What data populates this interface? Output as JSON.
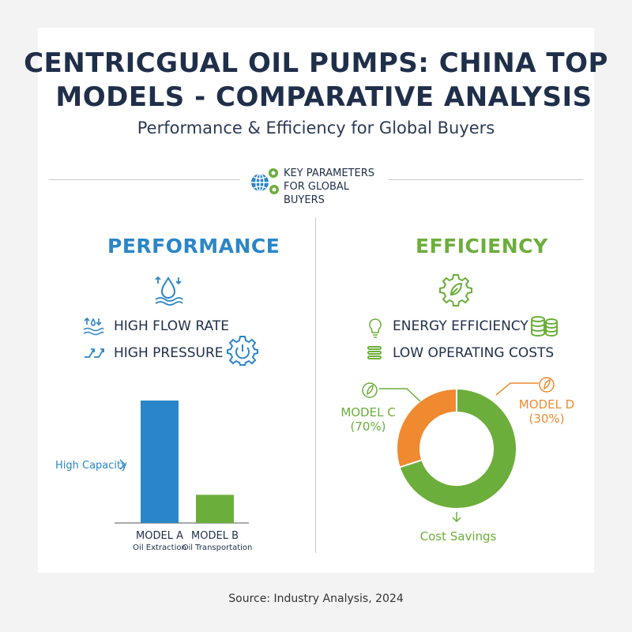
{
  "header": {
    "title_line1": "CENTRICGUAL OIL PUMPS: CHINA TOP",
    "title_line2": "MODELS - COMPARATIVE ANALYSIS",
    "subtitle": "Performance & Efficiency for Global Buyers"
  },
  "key_parameters": {
    "line1": "KEY PARAMETERS",
    "line2": "FOR GLOBAL BUYERS",
    "icon": "globe-gears-icon"
  },
  "performance": {
    "title": "PERFORMANCE",
    "color": "#2a86c8",
    "features": [
      {
        "label": "HIGH FLOW RATE",
        "icon": "water-flow-icon"
      },
      {
        "label": "HIGH PRESSURE",
        "icon": "pressure-arrows-icon"
      }
    ]
  },
  "efficiency": {
    "title": "EFFICIENCY",
    "color": "#6cae3b",
    "features": [
      {
        "label": "ENERGY EFFICIENCY",
        "icon": "lightbulb-icon"
      },
      {
        "label": "LOW OPERATING COSTS",
        "icon": "coins-icon"
      }
    ]
  },
  "chart_data": [
    {
      "type": "bar",
      "categories": [
        "MODEL A",
        "MODEL B"
      ],
      "category_sublabels": [
        "Oil Extraction",
        "Oil Transportation"
      ],
      "values": [
        100,
        23
      ],
      "colors": [
        "#2a86c8",
        "#6cae3b"
      ],
      "annotation": "High Capacity",
      "ylim": [
        0,
        100
      ],
      "grid": false
    },
    {
      "type": "pie",
      "style": "donut",
      "labels": [
        "MODEL C",
        "MODEL D"
      ],
      "value_labels": [
        "(70%)",
        "(30%)"
      ],
      "values": [
        70,
        30
      ],
      "colors": [
        "#6cae3b",
        "#f08a30"
      ],
      "annotation": "Cost Savings"
    }
  ],
  "footer": {
    "source": "Source: Industry Analysis, 2024"
  }
}
